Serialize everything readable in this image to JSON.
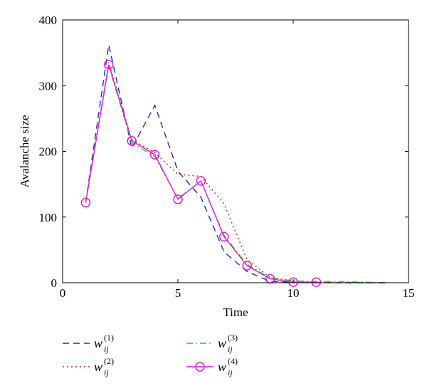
{
  "chart_data": {
    "type": "line",
    "xlabel": "Time",
    "ylabel": "Avalanche size",
    "xlim": [
      0,
      15
    ],
    "ylim": [
      0,
      400
    ],
    "xticks": [
      0,
      5,
      10,
      15
    ],
    "yticks": [
      0,
      100,
      200,
      300,
      400
    ],
    "grid": false,
    "legend_position": "bottom",
    "series": [
      {
        "name": "w_ij^(1)",
        "legend": {
          "base": "w",
          "sub": "ij",
          "sup": "(1)"
        },
        "color": "#1f2fa8",
        "style": "dashed",
        "x": [
          1,
          2,
          3,
          4,
          5,
          6,
          7,
          8,
          9,
          10,
          11,
          12,
          13,
          14
        ],
        "y": [
          122,
          362,
          205,
          270,
          170,
          130,
          47,
          17,
          2,
          1,
          0,
          0,
          0,
          0
        ]
      },
      {
        "name": "w_ij^(2)",
        "legend": {
          "base": "w",
          "sub": "ij",
          "sup": "(2)"
        },
        "color": "#d0202a",
        "style": "dotted",
        "x": [
          1,
          2,
          3,
          4,
          5,
          6,
          7,
          8,
          9,
          10,
          11,
          12,
          13,
          14
        ],
        "y": [
          122,
          335,
          218,
          198,
          165,
          162,
          120,
          35,
          8,
          3,
          1,
          0,
          0,
          0
        ]
      },
      {
        "name": "w_ij^(3)",
        "legend": {
          "base": "w",
          "sub": "ij",
          "sup": "(3)"
        },
        "color": "#2ec42e",
        "style": "dashdot",
        "x": [
          1,
          2,
          3,
          4,
          5,
          6,
          7,
          8,
          9,
          10,
          11,
          12,
          13,
          14
        ],
        "y": [
          122,
          330,
          213,
          192,
          128,
          155,
          72,
          28,
          7,
          3,
          2,
          2,
          1,
          0
        ]
      },
      {
        "name": "w_ij^(4)",
        "legend": {
          "base": "w",
          "sub": "ij",
          "sup": "(4)"
        },
        "color": "#e01ee0",
        "style": "solid-circle",
        "x": [
          1,
          2,
          3,
          4,
          5,
          6,
          7,
          8,
          9,
          10,
          11
        ],
        "y": [
          122,
          332,
          216,
          195,
          127,
          155,
          70,
          26,
          6,
          1,
          1
        ]
      }
    ]
  }
}
